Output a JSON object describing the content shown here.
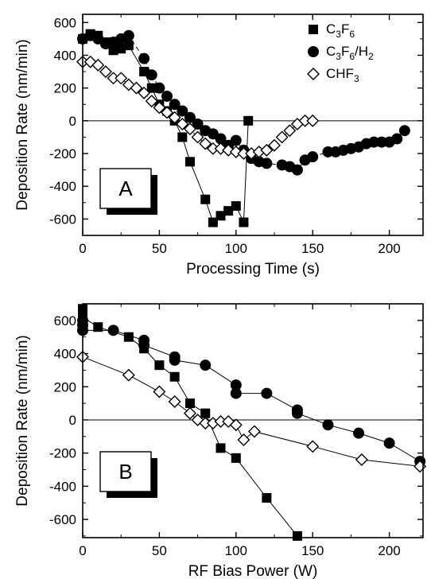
{
  "chart_data": [
    {
      "type": "scatter",
      "panel_label": "A",
      "xlabel": "Processing Time (s)",
      "ylabel": "Deposition Rate (nm/min)",
      "xlim": [
        0,
        222
      ],
      "ylim": [
        -700,
        650
      ],
      "xticks": [
        0,
        50,
        100,
        150,
        200
      ],
      "yticks": [
        600,
        400,
        200,
        0,
        -200,
        -400,
        -600
      ],
      "grid": false,
      "zero_line": true,
      "legend_position": "top-right",
      "series": [
        {
          "name": "C3F6",
          "marker": "square",
          "x": [
            0,
            5,
            10,
            15,
            20,
            25,
            30,
            40,
            45,
            50,
            55,
            60,
            65,
            70,
            80,
            85,
            90,
            95,
            100,
            105,
            108
          ],
          "y": [
            500,
            530,
            520,
            480,
            430,
            440,
            460,
            300,
            200,
            100,
            60,
            0,
            -100,
            -250,
            -480,
            -620,
            -580,
            -550,
            -520,
            -620,
            0
          ]
        },
        {
          "name": "C3F6/H2",
          "marker": "circle",
          "x": [
            0,
            5,
            10,
            15,
            20,
            25,
            30,
            40,
            45,
            50,
            55,
            60,
            65,
            70,
            75,
            80,
            85,
            90,
            95,
            100,
            105,
            110,
            115,
            120,
            130,
            135,
            140,
            145,
            150,
            160,
            165,
            170,
            175,
            180,
            185,
            190,
            195,
            200,
            205,
            210
          ],
          "y": [
            500,
            520,
            500,
            470,
            480,
            500,
            520,
            380,
            280,
            200,
            150,
            100,
            60,
            20,
            -20,
            -60,
            -80,
            -110,
            -150,
            -120,
            -180,
            -230,
            -250,
            -260,
            -270,
            -280,
            -300,
            -240,
            -220,
            -190,
            -190,
            -180,
            -170,
            -160,
            -140,
            -130,
            -130,
            -130,
            -110,
            -60
          ]
        },
        {
          "name": "CHF3",
          "marker": "diamond-open",
          "x": [
            0,
            5,
            10,
            15,
            20,
            25,
            30,
            35,
            40,
            45,
            50,
            55,
            60,
            65,
            70,
            75,
            80,
            85,
            90,
            95,
            100,
            105,
            110,
            115,
            120,
            125,
            130,
            135,
            140,
            145,
            150
          ],
          "y": [
            360,
            360,
            340,
            300,
            260,
            260,
            220,
            200,
            170,
            120,
            80,
            50,
            20,
            -20,
            -50,
            -100,
            -140,
            -170,
            -170,
            -180,
            -190,
            -200,
            -200,
            -190,
            -180,
            -150,
            -100,
            -60,
            -20,
            0,
            0
          ]
        }
      ]
    },
    {
      "type": "scatter",
      "panel_label": "B",
      "xlabel": "RF Bias Power (W)",
      "ylabel": "Deposition Rate (nm/min)",
      "xlim": [
        0,
        222
      ],
      "ylim": [
        -710,
        700
      ],
      "xticks": [
        0,
        50,
        100,
        150,
        200
      ],
      "yticks": [
        600,
        400,
        200,
        0,
        -200,
        -400,
        -600
      ],
      "grid": false,
      "zero_line": true,
      "series": [
        {
          "name": "C3F6",
          "marker": "square",
          "x": [
            0,
            0,
            10,
            30,
            40,
            50,
            60,
            70,
            80,
            90,
            100,
            120,
            140
          ],
          "y": [
            670,
            620,
            560,
            500,
            430,
            330,
            260,
            100,
            40,
            -170,
            -230,
            -470,
            -700
          ]
        },
        {
          "name": "C3F6/H2",
          "marker": "circle",
          "x": [
            0,
            0,
            0,
            20,
            40,
            40,
            60,
            60,
            80,
            100,
            100,
            120,
            140,
            140,
            160,
            180,
            200,
            220
          ],
          "y": [
            600,
            570,
            540,
            540,
            480,
            450,
            380,
            360,
            330,
            210,
            160,
            160,
            60,
            40,
            -30,
            -80,
            -140,
            -250
          ]
        },
        {
          "name": "CHF3",
          "marker": "diamond-open",
          "x": [
            0,
            30,
            50,
            60,
            70,
            75,
            80,
            85,
            90,
            95,
            100,
            105,
            112,
            150,
            182,
            220
          ],
          "y": [
            380,
            270,
            170,
            110,
            40,
            0,
            -20,
            -20,
            -10,
            -10,
            -30,
            -120,
            -70,
            -160,
            -240,
            -280
          ]
        }
      ]
    }
  ],
  "legend": {
    "entries": [
      {
        "marker": "square",
        "parts": [
          {
            "t": "C"
          },
          {
            "t": "3",
            "sub": true
          },
          {
            "t": "F"
          },
          {
            "t": "6",
            "sub": true
          }
        ]
      },
      {
        "marker": "circle",
        "parts": [
          {
            "t": "C"
          },
          {
            "t": "3",
            "sub": true
          },
          {
            "t": "F"
          },
          {
            "t": "6",
            "sub": true
          },
          {
            "t": "/H"
          },
          {
            "t": "2",
            "sub": true
          }
        ]
      },
      {
        "marker": "diamond-open",
        "parts": [
          {
            "t": "CHF"
          },
          {
            "t": "3",
            "sub": true
          }
        ]
      }
    ]
  }
}
